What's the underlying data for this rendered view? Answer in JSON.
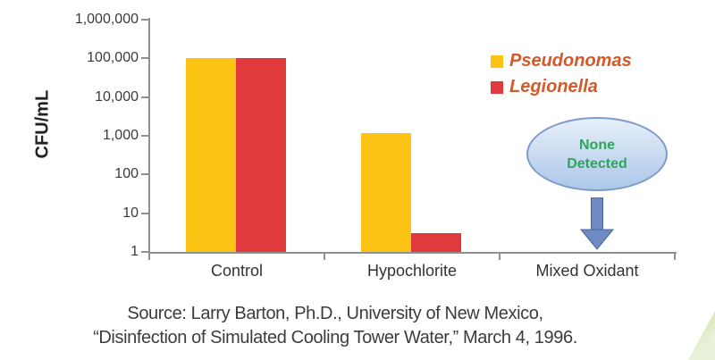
{
  "chart_data": {
    "type": "bar",
    "title": "",
    "ylabel": "CFU/mL",
    "yscale": "log",
    "ylim": [
      1,
      1000000
    ],
    "ytick_labels": [
      "1,000,000",
      "100,000",
      "10,000",
      "1,000",
      "100",
      "10",
      "1"
    ],
    "categories": [
      "Control",
      "Hypochlorite",
      "Mixed Oxidant"
    ],
    "series": [
      {
        "name": "Pseudonomas",
        "color": "#FBC313",
        "values": [
          100000,
          1200,
          0
        ]
      },
      {
        "name": "Legionella",
        "color": "#E03A3C",
        "values": [
          100000,
          3,
          0
        ]
      }
    ],
    "grid": false,
    "legend": {
      "position": "upper-right",
      "text_color": "#D4592A"
    },
    "axis_color": "#909090"
  },
  "annotation": {
    "line1": "None",
    "line2": "Detected",
    "target_category": "Mixed Oxidant",
    "text_color": "#2FA45C",
    "ellipse_fill": "#C9DAF1",
    "ellipse_border": "#7C9CCB",
    "arrow_color": "#6F89C2",
    "arrow_outline": "#47649F"
  },
  "source": {
    "line1": "Source: Larry Barton, Ph.D., University of New Mexico,",
    "line2": "“Disinfection of Simulated Cooling Tower Water,” March 4, 1996."
  }
}
